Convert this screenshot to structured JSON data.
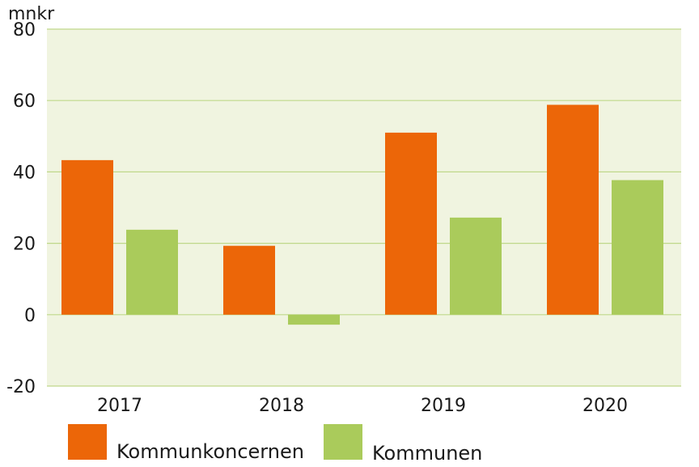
{
  "chart_data": {
    "type": "bar",
    "unit": "mnkr",
    "categories": [
      "2017",
      "2018",
      "2019",
      "2020"
    ],
    "series": [
      {
        "name": "Kommunkoncernen",
        "values": [
          43.3,
          19.3,
          51.0,
          58.8
        ],
        "color": "#EC6608"
      },
      {
        "name": "Kommunen",
        "values": [
          23.8,
          -2.8,
          27.2,
          37.7
        ],
        "color": "#AACB5B"
      }
    ],
    "ylim": [
      -20,
      80
    ],
    "yticks": [
      "-20",
      "0",
      "20",
      "40",
      "60",
      "80"
    ],
    "grid": true,
    "legend_position": "bottom-left",
    "plot_background": "#F0F4E0",
    "gridline_color": "#BFD88A"
  }
}
